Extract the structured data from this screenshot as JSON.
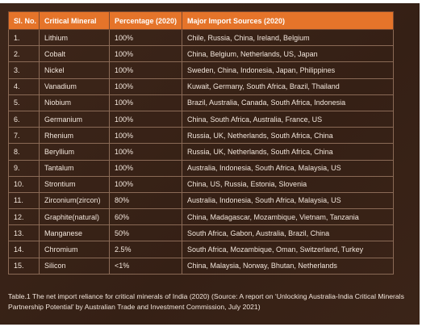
{
  "table": {
    "headers": [
      "Sl. No.",
      "Critical Mineral",
      "Percentage (2020)",
      "Major Import Sources (2020)"
    ],
    "rows": [
      [
        "1.",
        "Lithium",
        "100%",
        "Chile, Russia, China, Ireland, Belgium"
      ],
      [
        "2.",
        "Cobalt",
        "100%",
        "China, Belgium, Netherlands, US, Japan"
      ],
      [
        "3.",
        "Nickel",
        "100%",
        "Sweden, China, Indonesia, Japan, Philippines"
      ],
      [
        "4.",
        "Vanadium",
        "100%",
        "Kuwait, Germany, South Africa, Brazil, Thailand"
      ],
      [
        "5.",
        "Niobium",
        "100%",
        "Brazil, Australia, Canada, South Africa, Indonesia"
      ],
      [
        "6.",
        "Germanium",
        "100%",
        "China, South Africa, Australia, France, US"
      ],
      [
        "7.",
        "Rhenium",
        "100%",
        "Russia, UK, Netherlands, South Africa, China"
      ],
      [
        "8.",
        "Beryllium",
        "100%",
        "Russia, UK, Netherlands, South Africa, China"
      ],
      [
        "9.",
        "Tantalum",
        "100%",
        "Australia, Indonesia, South Africa, Malaysia, US"
      ],
      [
        "10.",
        "Strontium",
        "100%",
        "China, US, Russia, Estonia, Slovenia"
      ],
      [
        "11.",
        "Zirconium(zircon)",
        "80%",
        "Australia, Indonesia, South Africa, Malaysia, US"
      ],
      [
        "12.",
        "Graphite(natural)",
        "60%",
        "China, Madagascar, Mozambique, Vietnam, Tanzania"
      ],
      [
        "13.",
        "Manganese",
        "50%",
        "South Africa, Gabon, Australia, Brazil, China"
      ],
      [
        "14.",
        "Chromium",
        "2.5%",
        "South Africa, Mozambique, Oman, Switzerland, Turkey"
      ],
      [
        "15.",
        "Silicon",
        "<1%",
        "China, Malaysia, Norway, Bhutan, Netherlands"
      ]
    ]
  },
  "caption": "Table.1 The net import reliance for critical minerals of India (2020) (Source: A report on ‘Unlocking Australia-India Critical Minerals Partnership Potential’ by Australian Trade and Investment Commission, July 2021)",
  "colors": {
    "background": "#3a2418",
    "header": "#e5742a",
    "text": "#f2e6dc"
  }
}
